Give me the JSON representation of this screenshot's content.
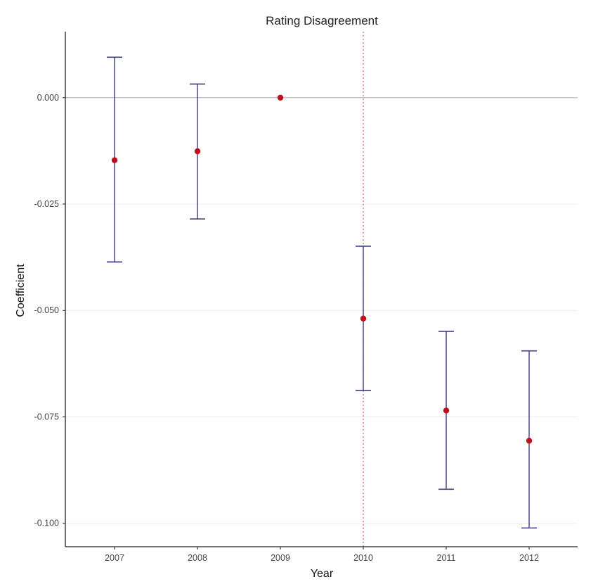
{
  "chart_data": {
    "type": "scatter",
    "title": "Rating Disagreement",
    "xlabel": "Year",
    "ylabel": "Coefficient",
    "x": [
      "2007",
      "2008",
      "2009",
      "2010",
      "2011",
      "2012"
    ],
    "estimates": [
      -0.0147,
      -0.0126,
      0.0,
      -0.0519,
      -0.0735,
      -0.0806
    ],
    "ci_lower": [
      -0.0386,
      -0.0285,
      0.0,
      -0.0688,
      -0.092,
      -0.1011
    ],
    "ci_upper": [
      0.0095,
      0.0032,
      0.0,
      -0.0349,
      -0.0549,
      -0.0595
    ],
    "yticks": [
      0.0,
      -0.025,
      -0.05,
      -0.075,
      -0.1
    ],
    "ytick_labels": [
      "0.000",
      "-0.025",
      "-0.050",
      "-0.075",
      "-0.100"
    ],
    "ylim": [
      -0.1055,
      0.0155
    ],
    "reference_hline": 0.0,
    "reference_vline": "2010",
    "grid": "horizontal-major",
    "colors": {
      "point": "#c0101e",
      "errorbar": "#3d3d82",
      "hline": "#b8b8b8",
      "vline": "#e0506a",
      "grid": "#ececec",
      "axis": "#222222"
    }
  }
}
